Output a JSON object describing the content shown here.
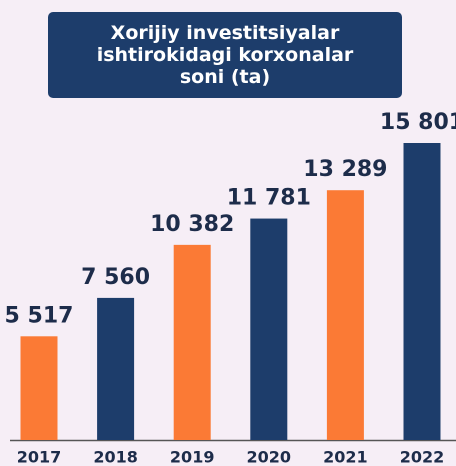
{
  "chart_data": {
    "type": "bar",
    "title": "Xorijiy investitsiyalar ishtirokidagi korxonalar soni (ta)",
    "categories": [
      "2017",
      "2018",
      "2019",
      "2020",
      "2021",
      "2022"
    ],
    "values": [
      5517,
      7560,
      10382,
      11781,
      13289,
      15801
    ],
    "value_labels": [
      "5 517",
      "7 560",
      "10 382",
      "11 781",
      "13 289",
      "15 801"
    ],
    "colors": [
      "#fb7a35",
      "#1d3d6b",
      "#fb7a35",
      "#1d3d6b",
      "#fb7a35",
      "#1d3d6b"
    ]
  }
}
